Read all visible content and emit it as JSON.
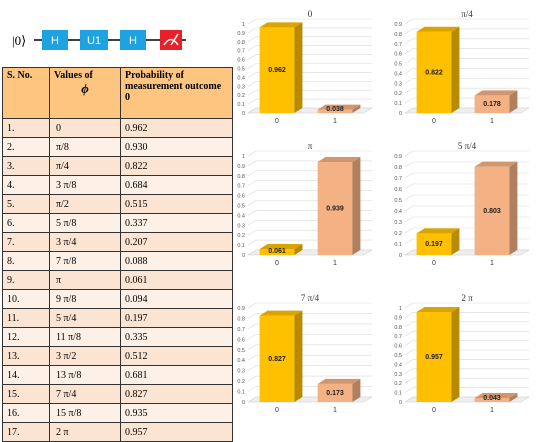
{
  "circuit": {
    "ket": "|0⟩",
    "gates": [
      "H",
      "U1",
      "H"
    ],
    "measure_icon": "measurement-icon"
  },
  "table": {
    "headers": [
      "S. No.",
      "Values of",
      "ϕ",
      "Probability of measurement outcome  0"
    ],
    "rows": [
      [
        "1.",
        "0",
        "0.962"
      ],
      [
        "2.",
        "π/8",
        "0.930"
      ],
      [
        "3.",
        "π/4",
        "0.822"
      ],
      [
        "4.",
        "3 π/8",
        "0.684"
      ],
      [
        "5.",
        "π/2",
        "0.515"
      ],
      [
        "6.",
        "5 π/8",
        "0.337"
      ],
      [
        "7.",
        "3 π/4",
        "0.207"
      ],
      [
        "8.",
        "7 π/8",
        "0.088"
      ],
      [
        "9.",
        "π",
        "0.061"
      ],
      [
        "10.",
        "9 π/8",
        "0.094"
      ],
      [
        "11.",
        "5 π/4",
        "0.197"
      ],
      [
        "12.",
        "11 π/8",
        "0.335"
      ],
      [
        "13.",
        "3 π/2",
        "0.512"
      ],
      [
        "14.",
        "13 π/8",
        "0.681"
      ],
      [
        "15.",
        "7 π/4",
        "0.827"
      ],
      [
        "16.",
        "15 π/8",
        "0.935"
      ],
      [
        "17.",
        "2 π",
        "0.957"
      ]
    ]
  },
  "colors": {
    "bar0": "#ffc000",
    "bar1": "#f4b183",
    "grid": "#d9d9d9",
    "gate": "#1fa3e0",
    "measure": "#e8202a"
  },
  "chart_data": [
    {
      "type": "bar",
      "title": "0",
      "categories": [
        "0",
        "1"
      ],
      "values": [
        0.962,
        0.038
      ],
      "ylim": [
        0,
        1
      ],
      "yticks": [
        "0",
        "0.1",
        "0.2",
        "0.3",
        "0.4",
        "0.5",
        "0.6",
        "0.7",
        "0.8",
        "0.9",
        "1"
      ]
    },
    {
      "type": "bar",
      "title": "π/4",
      "categories": [
        "0",
        "1"
      ],
      "values": [
        0.822,
        0.178
      ],
      "ylim": [
        0,
        0.9
      ],
      "yticks": [
        "0",
        "0.1",
        "0.2",
        "0.3",
        "0.4",
        "0.5",
        "0.6",
        "0.7",
        "0.8",
        "0.9"
      ]
    },
    {
      "type": "bar",
      "title": "π",
      "categories": [
        "0",
        "1"
      ],
      "values": [
        0.061,
        0.939
      ],
      "ylim": [
        0,
        1
      ],
      "yticks": [
        "0",
        "0.1",
        "0.2",
        "0.3",
        "0.4",
        "0.5",
        "0.6",
        "0.7",
        "0.8",
        "0.9",
        "1"
      ]
    },
    {
      "type": "bar",
      "title": "5 π/4",
      "categories": [
        "0",
        "1"
      ],
      "values": [
        0.197,
        0.803
      ],
      "ylim": [
        0,
        0.9
      ],
      "yticks": [
        "0",
        "0.1",
        "0.2",
        "0.3",
        "0.4",
        "0.5",
        "0.6",
        "0.7",
        "0.8",
        "0.9"
      ]
    },
    {
      "type": "bar",
      "title": "7 π/4",
      "categories": [
        "0",
        "1"
      ],
      "values": [
        0.827,
        0.173
      ],
      "ylim": [
        0,
        0.9
      ],
      "yticks": [
        "0",
        "0.1",
        "0.2",
        "0.3",
        "0.4",
        "0.5",
        "0.6",
        "0.7",
        "0.8",
        "0.9"
      ]
    },
    {
      "type": "bar",
      "title": "2 π",
      "categories": [
        "0",
        "1"
      ],
      "values": [
        0.957,
        0.043
      ],
      "ylim": [
        0,
        1
      ],
      "yticks": [
        "0",
        "0.1",
        "0.2",
        "0.3",
        "0.4",
        "0.5",
        "0.6",
        "0.7",
        "0.8",
        "0.9",
        "1"
      ]
    }
  ]
}
